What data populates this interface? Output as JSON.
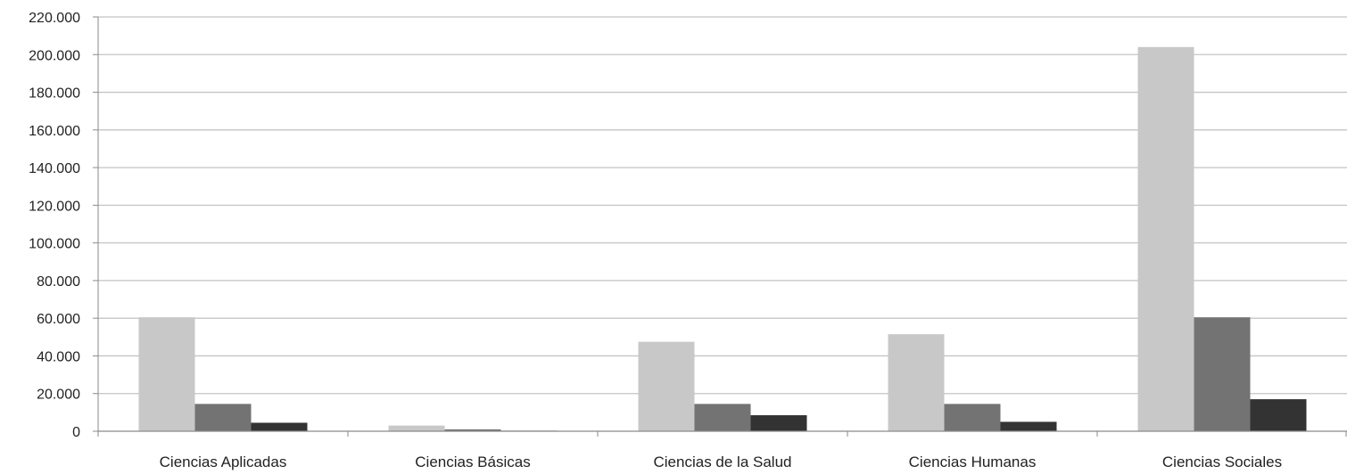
{
  "chart_data": {
    "type": "bar",
    "categories": [
      "Ciencias Aplicadas",
      "Ciencias Básicas",
      "Ciencias de la Salud",
      "Ciencias Humanas",
      "Ciencias Sociales"
    ],
    "series": [
      {
        "color": "#c8c8c8",
        "values": [
          60500,
          3000,
          47500,
          51500,
          204000
        ]
      },
      {
        "color": "#737373",
        "values": [
          14500,
          1000,
          14500,
          14500,
          60500
        ]
      },
      {
        "color": "#333333",
        "values": [
          4500,
          300,
          8500,
          5000,
          17000
        ]
      }
    ],
    "yticks": [
      "0",
      "20.000",
      "40.000",
      "60.000",
      "80.000",
      "100.000",
      "120.000",
      "140.000",
      "160.000",
      "180.000",
      "200.000",
      "220.000"
    ],
    "ylim": [
      0,
      220000
    ],
    "grid": true,
    "title": "",
    "xlabel": "",
    "ylabel": ""
  }
}
